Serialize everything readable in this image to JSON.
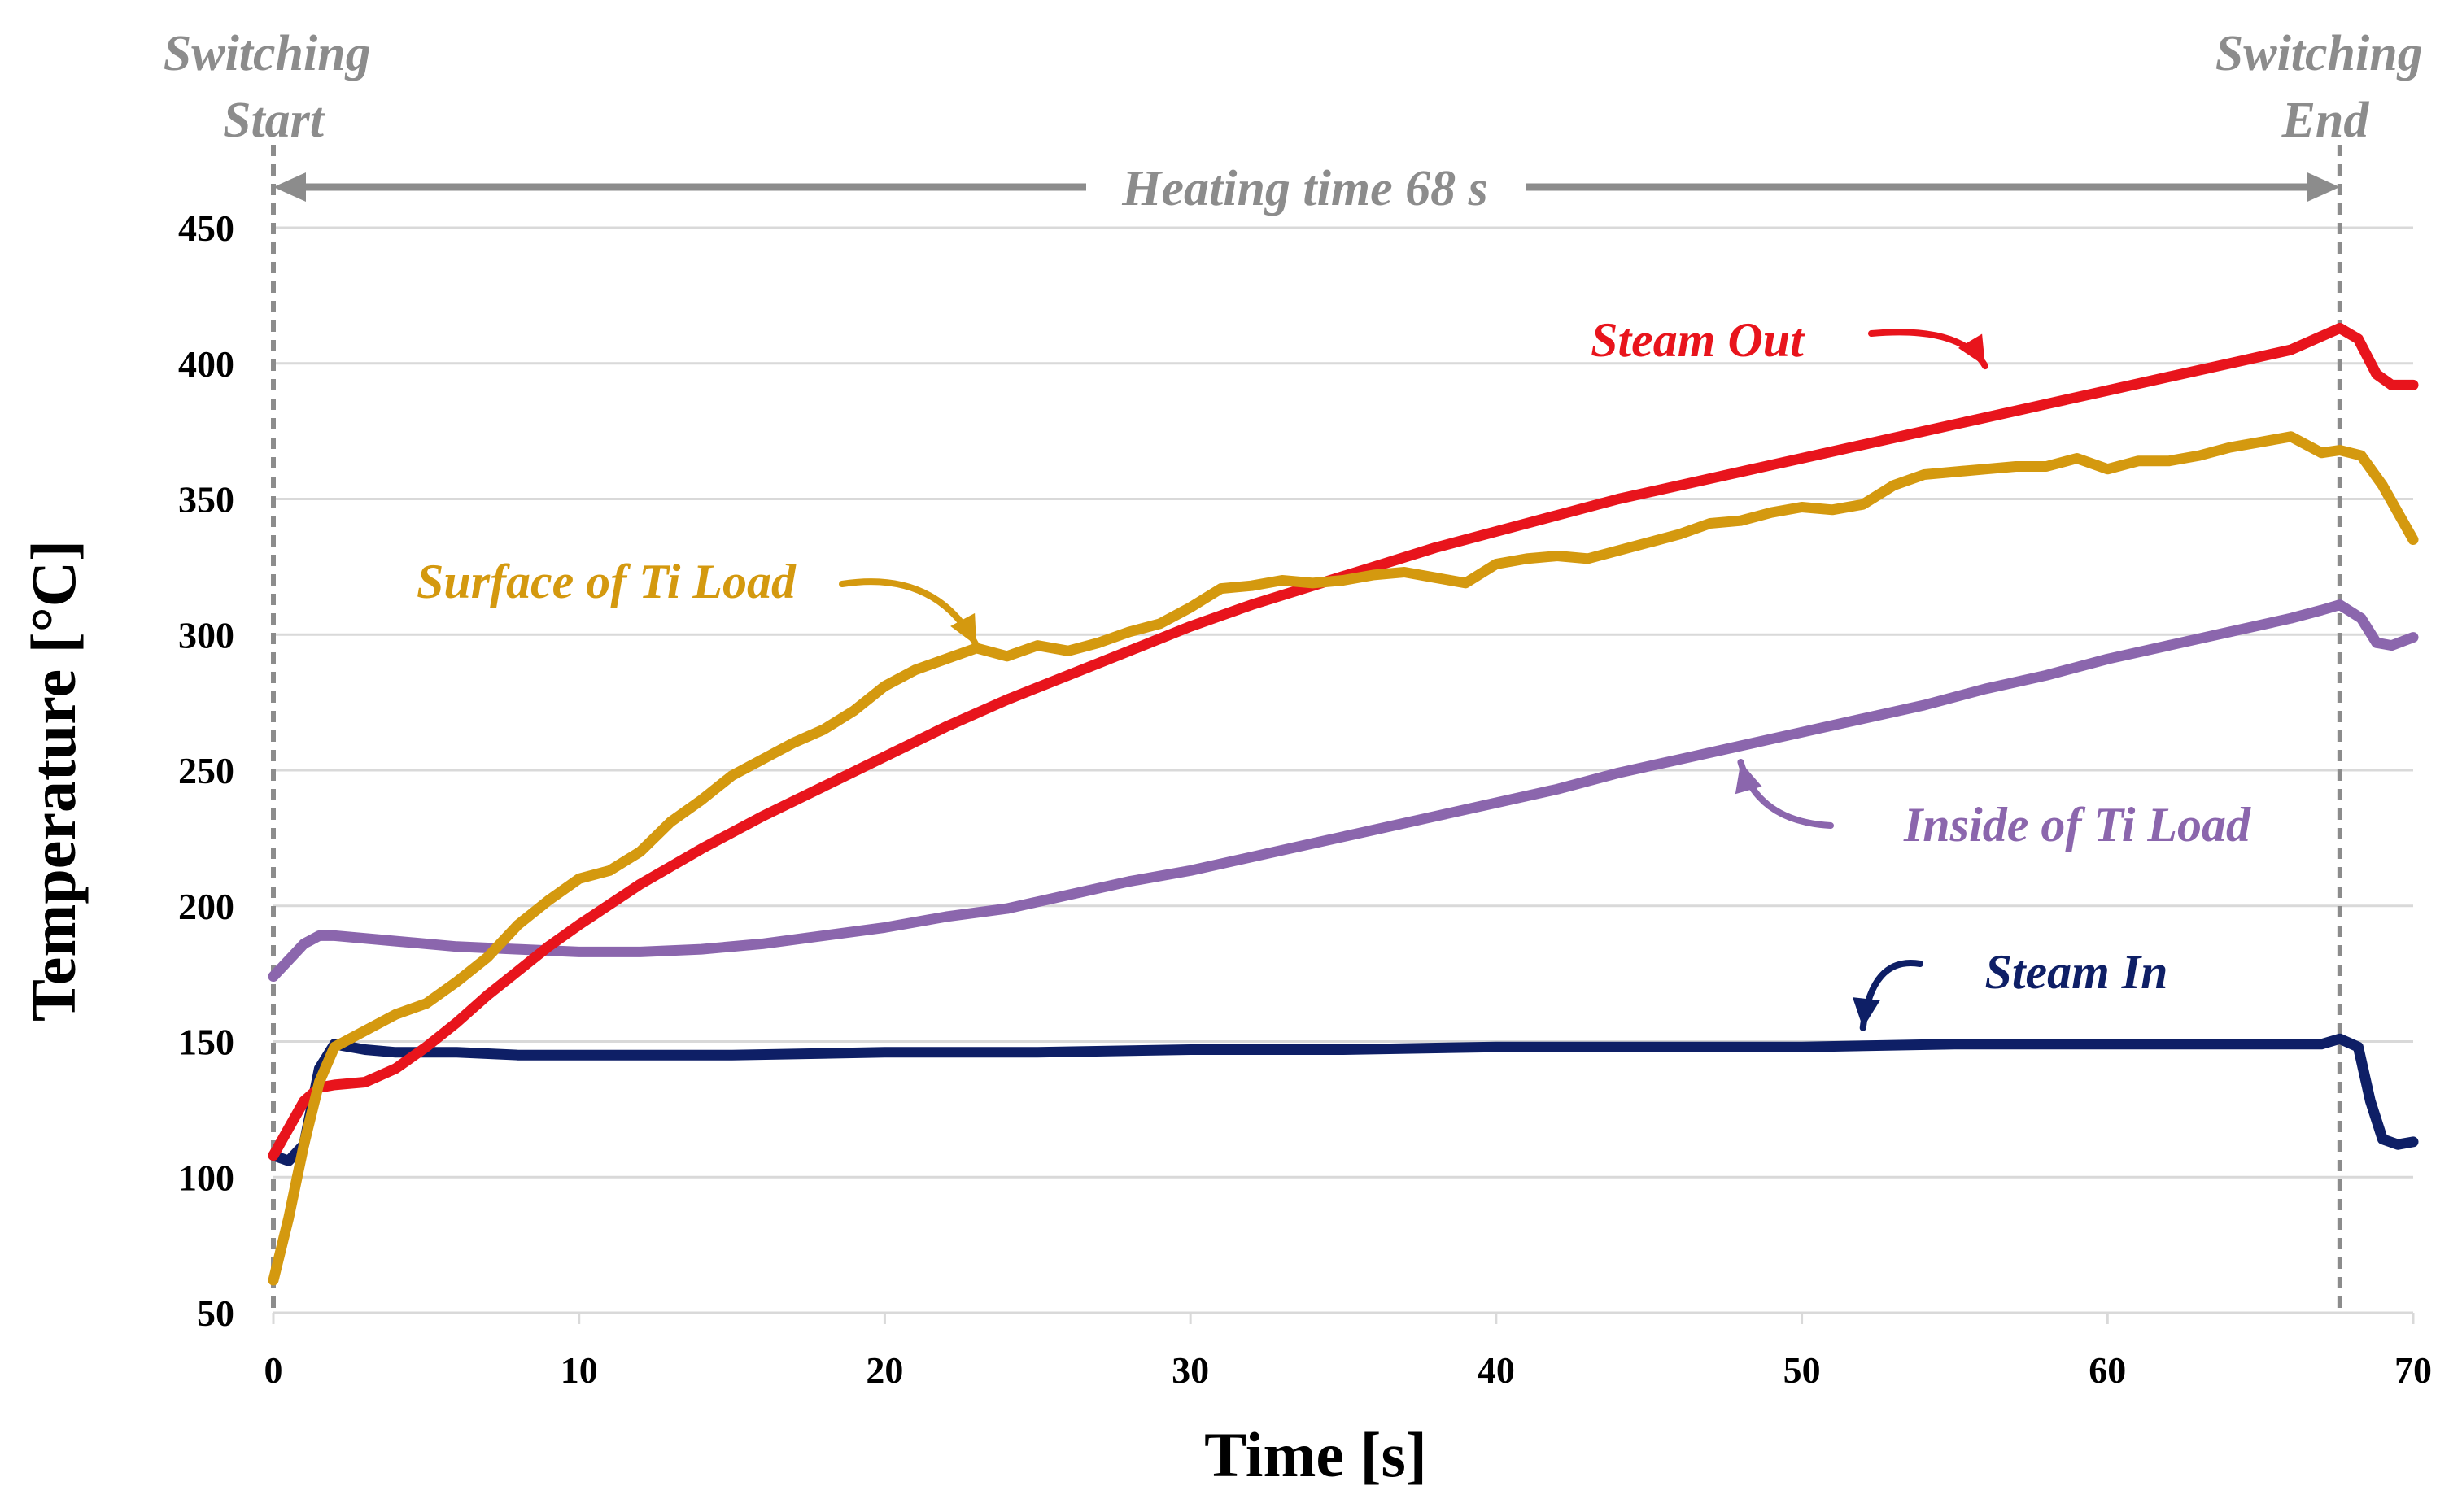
{
  "chart_data": {
    "type": "line",
    "xlabel": "Time [s]",
    "ylabel": "Temperature [°C]",
    "xlim": [
      0,
      70
    ],
    "ylim": [
      50,
      450
    ],
    "x_ticks": [
      0,
      10,
      20,
      30,
      40,
      50,
      60,
      70
    ],
    "y_ticks": [
      50,
      100,
      150,
      200,
      250,
      300,
      350,
      400,
      450
    ],
    "grid": "horizontal",
    "annotations": {
      "switching_start": "Switching Start",
      "switching_start_lines": [
        "Switching",
        "Start"
      ],
      "switching_end": "Switching End",
      "switching_end_lines": [
        "Switching",
        "End"
      ],
      "switching_start_time": 0,
      "switching_end_time": 67.6,
      "heating_time": "Heating time 68 s"
    },
    "series": [
      {
        "name": "Steam Out",
        "color": "#e8141c",
        "label_anchor": [
          47,
          411
        ],
        "arrow_tip": [
          56,
          399
        ],
        "points": [
          [
            0,
            108
          ],
          [
            0.5,
            118
          ],
          [
            1,
            128
          ],
          [
            1.5,
            133
          ],
          [
            2,
            134
          ],
          [
            3,
            135
          ],
          [
            4,
            140
          ],
          [
            5,
            148
          ],
          [
            6,
            157
          ],
          [
            7,
            167
          ],
          [
            8,
            176
          ],
          [
            9,
            185
          ],
          [
            10,
            193
          ],
          [
            12,
            208
          ],
          [
            14,
            221
          ],
          [
            16,
            233
          ],
          [
            18,
            244
          ],
          [
            20,
            255
          ],
          [
            22,
            266
          ],
          [
            24,
            276
          ],
          [
            26,
            285
          ],
          [
            28,
            294
          ],
          [
            30,
            303
          ],
          [
            32,
            311
          ],
          [
            34,
            318
          ],
          [
            36,
            325
          ],
          [
            38,
            332
          ],
          [
            40,
            338
          ],
          [
            42,
            344
          ],
          [
            44,
            350
          ],
          [
            46,
            355
          ],
          [
            48,
            360
          ],
          [
            50,
            365
          ],
          [
            52,
            370
          ],
          [
            54,
            375
          ],
          [
            56,
            380
          ],
          [
            58,
            385
          ],
          [
            60,
            390
          ],
          [
            62,
            395
          ],
          [
            64,
            400
          ],
          [
            66,
            405
          ],
          [
            67,
            410
          ],
          [
            67.6,
            413
          ],
          [
            68.2,
            409
          ],
          [
            68.8,
            396
          ],
          [
            69.3,
            392
          ],
          [
            70,
            392
          ]
        ]
      },
      {
        "name": "Surface of Ti Load",
        "color": "#d4990f",
        "label_anchor": [
          11,
          323
        ],
        "arrow_tip": [
          23,
          296
        ],
        "points": [
          [
            0,
            62
          ],
          [
            0.5,
            85
          ],
          [
            1,
            112
          ],
          [
            1.5,
            135
          ],
          [
            2,
            148
          ],
          [
            3,
            154
          ],
          [
            4,
            160
          ],
          [
            5,
            164
          ],
          [
            6,
            172
          ],
          [
            7,
            181
          ],
          [
            8,
            193
          ],
          [
            9,
            202
          ],
          [
            10,
            210
          ],
          [
            11,
            213
          ],
          [
            12,
            220
          ],
          [
            13,
            231
          ],
          [
            14,
            239
          ],
          [
            15,
            248
          ],
          [
            16,
            254
          ],
          [
            17,
            260
          ],
          [
            18,
            265
          ],
          [
            19,
            272
          ],
          [
            20,
            281
          ],
          [
            21,
            287
          ],
          [
            22,
            291
          ],
          [
            23,
            295
          ],
          [
            24,
            292
          ],
          [
            25,
            296
          ],
          [
            26,
            294
          ],
          [
            27,
            297
          ],
          [
            28,
            301
          ],
          [
            29,
            304
          ],
          [
            30,
            310
          ],
          [
            31,
            317
          ],
          [
            32,
            318
          ],
          [
            33,
            320
          ],
          [
            34,
            319
          ],
          [
            35,
            320
          ],
          [
            36,
            322
          ],
          [
            37,
            323
          ],
          [
            38,
            321
          ],
          [
            39,
            319
          ],
          [
            40,
            326
          ],
          [
            41,
            328
          ],
          [
            42,
            329
          ],
          [
            43,
            328
          ],
          [
            44,
            331
          ],
          [
            45,
            334
          ],
          [
            46,
            337
          ],
          [
            47,
            341
          ],
          [
            48,
            342
          ],
          [
            49,
            345
          ],
          [
            50,
            347
          ],
          [
            51,
            346
          ],
          [
            52,
            348
          ],
          [
            53,
            355
          ],
          [
            54,
            359
          ],
          [
            55,
            360
          ],
          [
            56,
            361
          ],
          [
            57,
            362
          ],
          [
            58,
            362
          ],
          [
            59,
            365
          ],
          [
            60,
            361
          ],
          [
            61,
            364
          ],
          [
            62,
            364
          ],
          [
            63,
            366
          ],
          [
            64,
            369
          ],
          [
            65,
            371
          ],
          [
            66,
            373
          ],
          [
            67,
            367
          ],
          [
            67.6,
            368
          ],
          [
            68.3,
            366
          ],
          [
            69,
            355
          ],
          [
            70,
            335
          ]
        ]
      },
      {
        "name": "Inside of Ti Load",
        "color": "#8b66ad",
        "label_anchor": [
          61,
          220
        ],
        "arrow_tip": [
          48,
          253
        ],
        "points": [
          [
            0,
            174
          ],
          [
            0.5,
            180
          ],
          [
            1,
            186
          ],
          [
            1.5,
            189
          ],
          [
            2,
            189
          ],
          [
            4,
            187
          ],
          [
            6,
            185
          ],
          [
            8,
            184
          ],
          [
            10,
            183
          ],
          [
            12,
            183
          ],
          [
            14,
            184
          ],
          [
            16,
            186
          ],
          [
            18,
            189
          ],
          [
            20,
            192
          ],
          [
            22,
            196
          ],
          [
            24,
            199
          ],
          [
            26,
            204
          ],
          [
            28,
            209
          ],
          [
            30,
            213
          ],
          [
            32,
            218
          ],
          [
            34,
            223
          ],
          [
            36,
            228
          ],
          [
            38,
            233
          ],
          [
            40,
            238
          ],
          [
            42,
            243
          ],
          [
            44,
            249
          ],
          [
            46,
            254
          ],
          [
            48,
            259
          ],
          [
            50,
            264
          ],
          [
            52,
            269
          ],
          [
            54,
            274
          ],
          [
            56,
            280
          ],
          [
            58,
            285
          ],
          [
            60,
            291
          ],
          [
            62,
            296
          ],
          [
            64,
            301
          ],
          [
            66,
            306
          ],
          [
            67,
            309
          ],
          [
            67.6,
            311
          ],
          [
            68.3,
            306
          ],
          [
            68.8,
            297
          ],
          [
            69.3,
            296
          ],
          [
            70,
            299
          ]
        ]
      },
      {
        "name": "Steam In",
        "color": "#0e1f66",
        "label_anchor": [
          52.5,
          168
        ],
        "arrow_tip": [
          52,
          155
        ],
        "points": [
          [
            0,
            108
          ],
          [
            0.5,
            106
          ],
          [
            1,
            112
          ],
          [
            1.5,
            140
          ],
          [
            2,
            149
          ],
          [
            3,
            147
          ],
          [
            4,
            146
          ],
          [
            6,
            146
          ],
          [
            8,
            145
          ],
          [
            10,
            145
          ],
          [
            15,
            145
          ],
          [
            20,
            146
          ],
          [
            25,
            146
          ],
          [
            30,
            147
          ],
          [
            35,
            147
          ],
          [
            40,
            148
          ],
          [
            45,
            148
          ],
          [
            50,
            148
          ],
          [
            55,
            149
          ],
          [
            60,
            149
          ],
          [
            65,
            149
          ],
          [
            67,
            149
          ],
          [
            67.6,
            151
          ],
          [
            68.2,
            148
          ],
          [
            68.6,
            128
          ],
          [
            69,
            114
          ],
          [
            69.5,
            112
          ],
          [
            70,
            113
          ]
        ]
      }
    ]
  }
}
